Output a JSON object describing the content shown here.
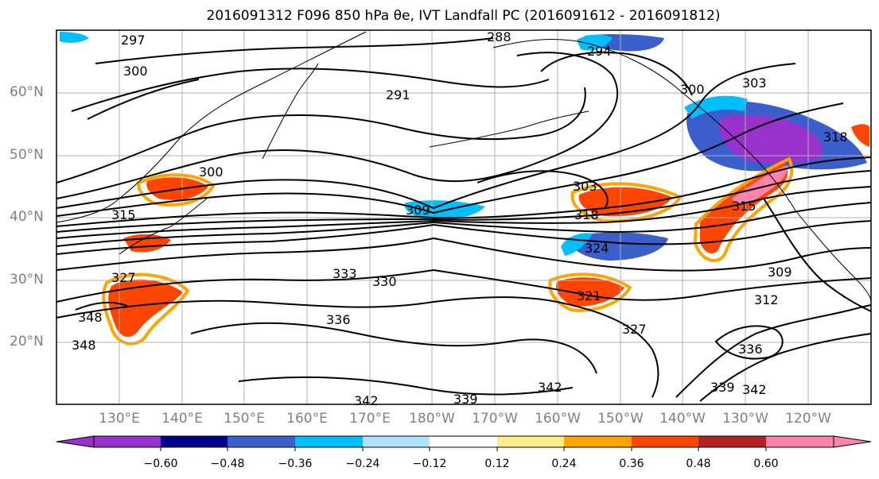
{
  "title": "2016091312 F096 850 hPa θe, IVT Landfall PC (2016091612 - 2016091812)",
  "map": {
    "lat_labels": [
      "60°N",
      "50°N",
      "40°N",
      "30°N",
      "20°N"
    ],
    "lon_labels": [
      "130°E",
      "140°E",
      "150°E",
      "160°E",
      "170°E",
      "180°W",
      "170°W",
      "160°W",
      "150°W",
      "140°W",
      "130°W",
      "120°W"
    ],
    "contour_labels": [
      "297",
      "288",
      "294",
      "300",
      "291",
      "303",
      "300",
      "300",
      "303",
      "309",
      "318",
      "315",
      "315",
      "324",
      "333",
      "330",
      "327",
      "309",
      "312",
      "336",
      "348",
      "348",
      "321",
      "327",
      "336",
      "339",
      "342",
      "339",
      "342",
      "342",
      "318"
    ],
    "contour_color": "#000000",
    "coast_color": "#000000",
    "grid_color": "#b0b0b0"
  },
  "colorbar": {
    "ticks": [
      "−0.60",
      "−0.48",
      "−0.36",
      "−0.24",
      "−0.12",
      "0.12",
      "0.24",
      "0.36",
      "0.48",
      "0.60"
    ],
    "colors": [
      "#9932cc",
      "#00008b",
      "#3a5fcd",
      "#00bfff",
      "#b0e2ff",
      "#ffffff",
      "#ffec8b",
      "#ffa500",
      "#ff4500",
      "#b22222",
      "#ff82ab",
      "#ff82ab"
    ]
  }
}
